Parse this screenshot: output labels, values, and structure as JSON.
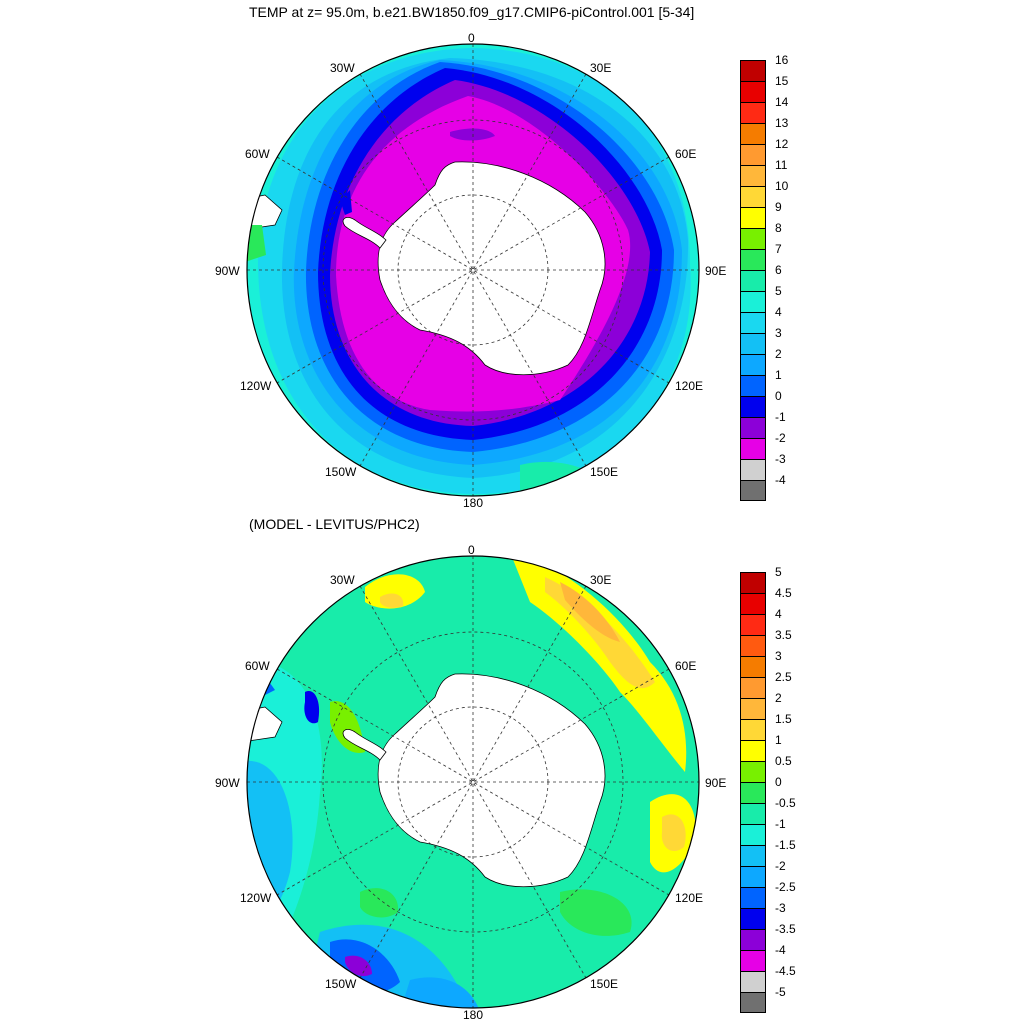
{
  "top_panel": {
    "title": "TEMP at z=  95.0m, b.e21.BW1850.f09_g17.CMIP6-piControl.001 [5-34]",
    "longitude_labels": [
      "0",
      "30E",
      "60E",
      "90E",
      "120E",
      "150E",
      "180",
      "150W",
      "120W",
      "90W",
      "60W",
      "30W"
    ],
    "colorbar": {
      "labels": [
        "16",
        "15",
        "14",
        "13",
        "12",
        "11",
        "10",
        "9",
        "8",
        "7",
        "6",
        "5",
        "4",
        "3",
        "2",
        "1",
        "0",
        "-1",
        "-2",
        "-3",
        "-4"
      ],
      "colors": [
        "#c00000",
        "#e80000",
        "#ff2a14",
        "#f57c00",
        "#ff9a30",
        "#ffb73a",
        "#ffd836",
        "#ffff00",
        "#78f000",
        "#29e85a",
        "#18ecaa",
        "#1af0d8",
        "#1ad8f0",
        "#13c0f5",
        "#0da8ff",
        "#0064ff",
        "#0000ee",
        "#8c00d8",
        "#e600e6",
        "#d0d0d0",
        "#707070"
      ]
    }
  },
  "bottom_panel": {
    "title": "(MODEL - LEVITUS/PHC2)",
    "longitude_labels": [
      "0",
      "30E",
      "60E",
      "90E",
      "120E",
      "150E",
      "180",
      "150W",
      "120W",
      "90W",
      "60W",
      "30W"
    ],
    "colorbar": {
      "labels": [
        "5",
        "4.5",
        "4",
        "3.5",
        "3",
        "2.5",
        "2",
        "1.5",
        "1",
        "0.5",
        "0",
        "-0.5",
        "-1",
        "-1.5",
        "-2",
        "-2.5",
        "-3",
        "-3.5",
        "-4",
        "-4.5",
        "-5"
      ],
      "colors": [
        "#c00000",
        "#e80000",
        "#ff2a14",
        "#ff5a10",
        "#f57c00",
        "#ff9a30",
        "#ffb73a",
        "#ffd836",
        "#ffff00",
        "#78f000",
        "#29e85a",
        "#18ecaa",
        "#1af0d8",
        "#13c0f5",
        "#0da8ff",
        "#0064ff",
        "#0000ee",
        "#8c00d8",
        "#e600e6",
        "#d0d0d0",
        "#707070"
      ]
    }
  }
}
